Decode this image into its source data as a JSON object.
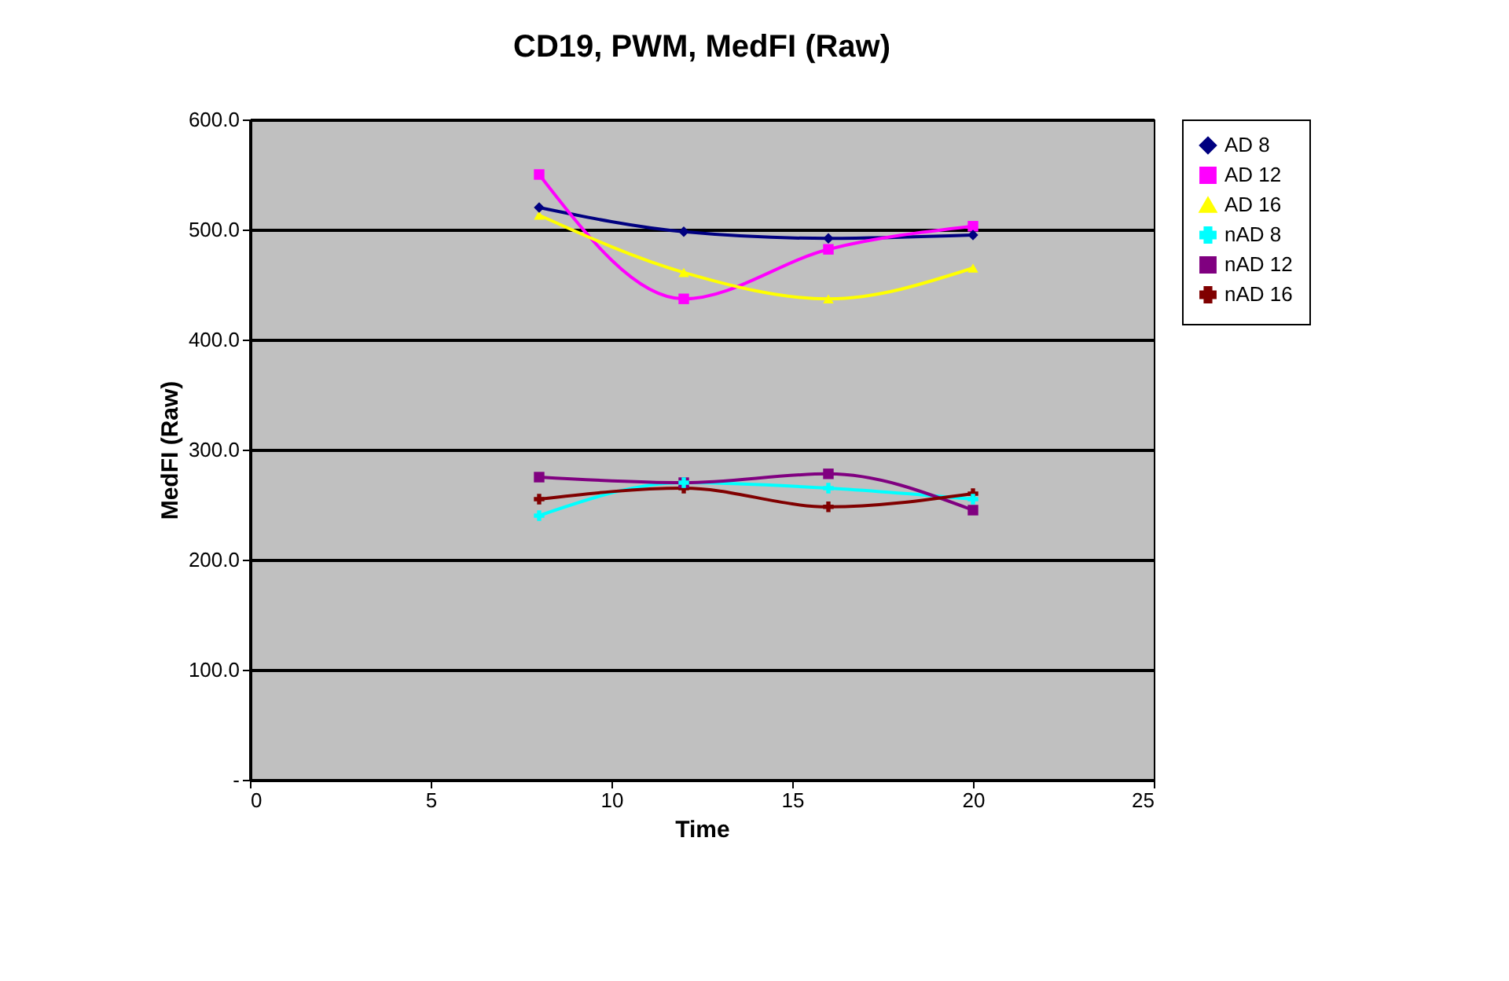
{
  "chart_data": {
    "type": "line",
    "title": "CD19, PWM, MedFI (Raw)",
    "xlabel": "Time",
    "ylabel": "MedFI (Raw)",
    "x": [
      8,
      12,
      16,
      20
    ],
    "series": [
      {
        "name": "AD 8",
        "color": "#000080",
        "marker": "diamond",
        "values": [
          520,
          498,
          492,
          495
        ]
      },
      {
        "name": "AD 12",
        "color": "#ff00ff",
        "marker": "square",
        "values": [
          550,
          437,
          482,
          503
        ]
      },
      {
        "name": "AD 16",
        "color": "#ffff00",
        "marker": "triangle",
        "values": [
          513,
          461,
          437,
          465
        ]
      },
      {
        "name": "nAD 8",
        "color": "#00ffff",
        "marker": "cross",
        "values": [
          240,
          270,
          265,
          255
        ]
      },
      {
        "name": "nAD 12",
        "color": "#800080",
        "marker": "square",
        "values": [
          275,
          270,
          278,
          245
        ]
      },
      {
        "name": "nAD 16",
        "color": "#800000",
        "marker": "cross",
        "values": [
          255,
          265,
          248,
          260
        ]
      }
    ],
    "xlim": [
      0,
      25
    ],
    "xticks": [
      0,
      5,
      10,
      15,
      20,
      25
    ],
    "ylim": [
      0,
      600
    ],
    "yticks": [
      {
        "value": 0,
        "label": "-"
      },
      {
        "value": 100,
        "label": "100.0"
      },
      {
        "value": 200,
        "label": "200.0"
      },
      {
        "value": 300,
        "label": "300.0"
      },
      {
        "value": 400,
        "label": "400.0"
      },
      {
        "value": 500,
        "label": "500.0"
      },
      {
        "value": 600,
        "label": "600.0"
      }
    ],
    "grid": "y",
    "legend": "right",
    "line_style": "solid"
  }
}
